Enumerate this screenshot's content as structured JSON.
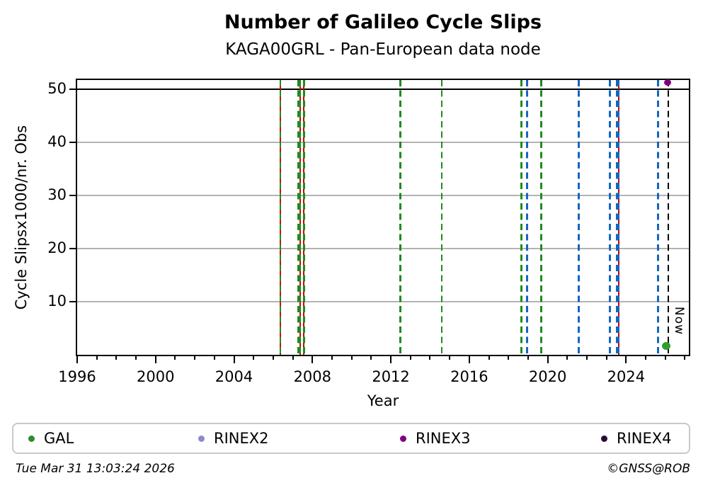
{
  "title": "Number of Galileo Cycle Slips",
  "subtitle": "KAGA00GRL - Pan-European data node",
  "footer": {
    "timestamp": "Tue Mar 31 13:03:24 2026",
    "credit": "©GNSS@ROB"
  },
  "colors": {
    "event_green": "#1f8b1f",
    "event_blue": "#1565c0",
    "event_red": "#d40000",
    "now_black": "#000000",
    "grid_gray": "#b3b3b3",
    "gal_marker": "#2e9e30",
    "rinex2": "#8a8ad0",
    "rinex3": "#800080",
    "rinex4": "#2a0934"
  },
  "legend": {
    "items": [
      {
        "label": "GAL",
        "color": "#2e8b2e"
      },
      {
        "label": "RINEX2",
        "color": "#8a8ad0"
      },
      {
        "label": "RINEX3",
        "color": "#800080"
      },
      {
        "label": "RINEX4",
        "color": "#2a0934"
      }
    ]
  },
  "chart_data": {
    "type": "scatter",
    "title": "Number of Galileo Cycle Slips",
    "subtitle": "KAGA00GRL - Pan-European data node",
    "xlabel": "Year",
    "ylabel": "Cycle Slipsx1000/nr. Obs",
    "xlim": [
      1996,
      2027.2
    ],
    "ylim": [
      0,
      51.7
    ],
    "xticks_major": [
      1996,
      2000,
      2004,
      2008,
      2012,
      2016,
      2020,
      2024
    ],
    "xticks_minor_step": 1,
    "yticks": [
      10,
      20,
      30,
      40,
      50
    ],
    "grid": {
      "horizontal": true,
      "vertical": false,
      "color": "#b3b3b3"
    },
    "threshold_line": {
      "y": 50,
      "color": "#000000"
    },
    "event_lines": [
      {
        "year": 2006.36,
        "color": "#1f8b1f",
        "style": "dashed",
        "backing": "#d40000",
        "width": 2.5
      },
      {
        "year": 2007.33,
        "color": "#1f8b1f",
        "style": "dashed",
        "backing": "#d40000",
        "width": 5
      },
      {
        "year": 2007.57,
        "color": "#1f8b1f",
        "style": "dashed",
        "backing": "#d40000",
        "width": 2.5
      },
      {
        "year": 2012.49,
        "color": "#1f8b1f",
        "style": "dashed",
        "width": 2.5
      },
      {
        "year": 2014.59,
        "color": "#1f8b1f",
        "style": "dashed",
        "width": 2.5
      },
      {
        "year": 2018.66,
        "color": "#1f8b1f",
        "style": "dashed",
        "width": 2.5
      },
      {
        "year": 2018.95,
        "color": "#1565c0",
        "style": "dashed",
        "width": 2.5
      },
      {
        "year": 2019.67,
        "color": "#1f8b1f",
        "style": "dashed",
        "width": 2.5
      },
      {
        "year": 2021.59,
        "color": "#1565c0",
        "style": "dashed",
        "width": 2.5
      },
      {
        "year": 2023.17,
        "color": "#1565c0",
        "style": "dashed",
        "width": 2.5
      },
      {
        "year": 2023.56,
        "color": "#1565c0",
        "style": "dashed",
        "backing": "#d40000",
        "width": 5
      },
      {
        "year": 2025.63,
        "color": "#1565c0",
        "style": "dashed",
        "width": 2.5
      }
    ],
    "now_line": {
      "year": 2026.16,
      "label": "Now",
      "color": "#000000",
      "style": "dashed"
    },
    "points": [
      {
        "series": "RINEX3",
        "year": 2026.1,
        "value": 51.2,
        "color": "#800080",
        "size": 10
      },
      {
        "series": "GAL",
        "year": 2026.05,
        "value": 1.6,
        "color": "#2e9e30",
        "size": 12
      }
    ],
    "legend_entries": [
      "GAL",
      "RINEX2",
      "RINEX3",
      "RINEX4"
    ],
    "legend_position": "bottom"
  }
}
